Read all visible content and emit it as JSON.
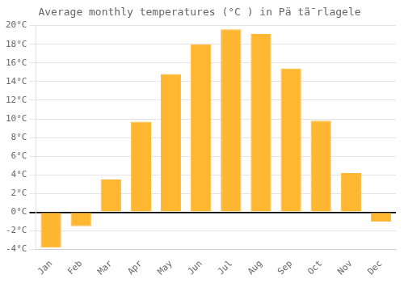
{
  "chart_data": {
    "type": "bar",
    "title": "Average monthly temperatures (°C ) in Pä tã¯rlagele",
    "categories": [
      "Jan",
      "Feb",
      "Mar",
      "Apr",
      "May",
      "Jun",
      "Jul",
      "Aug",
      "Sep",
      "Oct",
      "Nov",
      "Dec"
    ],
    "values": [
      -3.8,
      -1.5,
      3.5,
      9.7,
      14.8,
      18.0,
      19.6,
      19.1,
      15.4,
      9.8,
      4.2,
      -1.0
    ],
    "color": "#FFB732",
    "ylim": [
      -4,
      20
    ],
    "yticks": [
      {
        "value": -4,
        "label": "-4°C"
      },
      {
        "value": -2,
        "label": "-2°C"
      },
      {
        "value": 0,
        "label": "0°C"
      },
      {
        "value": 2,
        "label": "2°C"
      },
      {
        "value": 4,
        "label": "4°C"
      },
      {
        "value": 6,
        "label": "6°C"
      },
      {
        "value": 8,
        "label": "8°C"
      },
      {
        "value": 10,
        "label": "10°C"
      },
      {
        "value": 12,
        "label": "12°C"
      },
      {
        "value": 14,
        "label": "14°C"
      },
      {
        "value": 16,
        "label": "16°C"
      },
      {
        "value": 18,
        "label": "18°C"
      },
      {
        "value": 20,
        "label": "20°C"
      }
    ],
    "grid": true
  }
}
